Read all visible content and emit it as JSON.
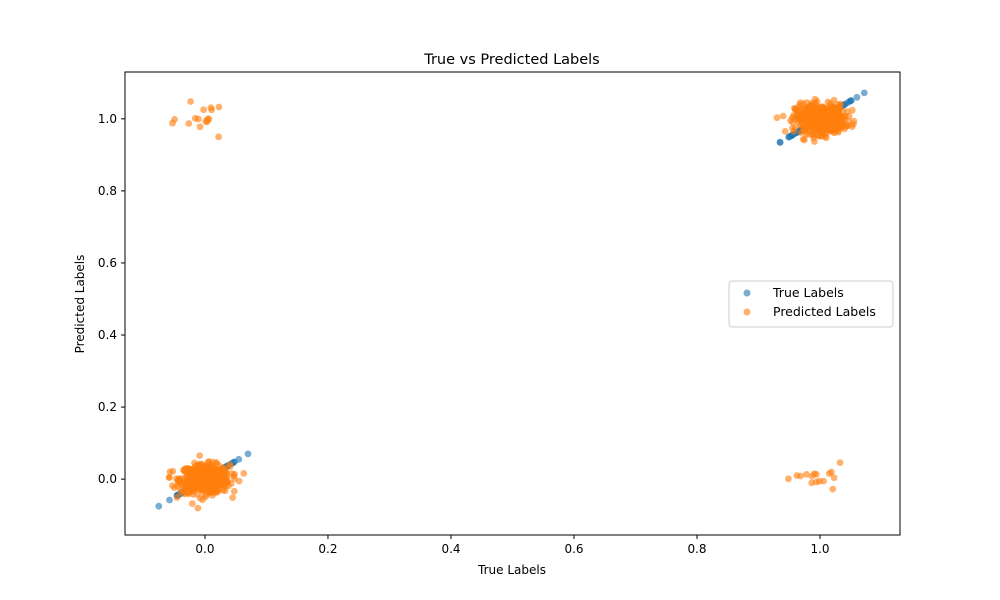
{
  "chart_data": {
    "type": "scatter",
    "title": "True vs Predicted Labels",
    "xlabel": "True Labels",
    "ylabel": "Predicted Labels",
    "xlim": [
      -0.13,
      1.13
    ],
    "ylim": [
      -0.155,
      1.13
    ],
    "xticks": [
      "0.0",
      "0.2",
      "0.4",
      "0.6",
      "0.8",
      "1.0"
    ],
    "xtick_values": [
      0.0,
      0.2,
      0.4,
      0.6,
      0.8,
      1.0
    ],
    "yticks": [
      "0.0",
      "0.2",
      "0.4",
      "0.6",
      "0.8",
      "1.0"
    ],
    "ytick_values": [
      0.0,
      0.2,
      0.4,
      0.6,
      0.8,
      1.0
    ],
    "grid": false,
    "legend_position": "center-right",
    "series": [
      {
        "name": "True Labels",
        "color": "#1f77b4",
        "clusters": [
          {
            "center": 0,
            "diagonal_range": [
              -0.075,
              0.07
            ]
          },
          {
            "center": 1,
            "diagonal_range": [
              0.935,
              1.072
            ]
          }
        ]
      },
      {
        "name": "Predicted Labels",
        "color": "#ff7f0e",
        "clusters": [
          {
            "x_center": 0,
            "y_center": 0,
            "spread": 0.02
          },
          {
            "x_center": 1,
            "y_center": 1,
            "spread": 0.02
          },
          {
            "x_center": 0,
            "y_center": 1,
            "spread": 0.02
          },
          {
            "x_center": 1,
            "y_center": 0,
            "spread": 0.02
          }
        ]
      }
    ]
  }
}
